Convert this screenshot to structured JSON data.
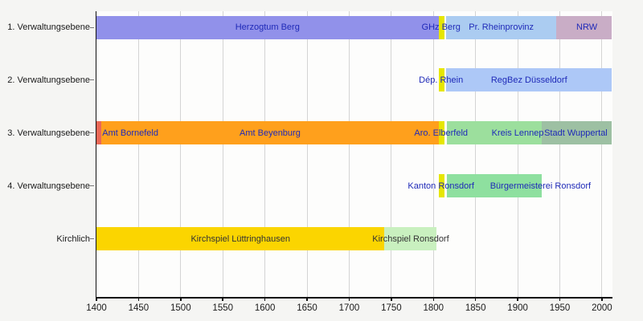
{
  "page": {
    "background": "#f5f5f3",
    "plot_background": "#fdfdfc",
    "grid_color": "#d4d4d4",
    "axis_color": "#111111",
    "label_color": "#1a1a1a"
  },
  "chart_data": {
    "type": "bar",
    "variant": "horizontal-timeline",
    "title": "",
    "xlabel": "",
    "ylabel": "",
    "legend": "none",
    "grid": true,
    "x_axis": {
      "min": 1400,
      "max": 2012,
      "ticks": [
        1400,
        1450,
        1500,
        1550,
        1600,
        1650,
        1700,
        1750,
        1800,
        1850,
        1900,
        1950,
        2000
      ]
    },
    "categories": [
      "1. Verwaltungsebene",
      "2. Verwaltungsebene",
      "3. Verwaltungsebene",
      "4. Verwaltungsebene",
      "Kirchlich"
    ],
    "rows": [
      {
        "label": "1. Verwaltungsebene",
        "segments": [
          {
            "label": "Herzogtum Berg",
            "start": 1400,
            "end": 1806,
            "color": "#9191ea",
            "label_color": "#1f2ab8",
            "label_mode": "center"
          },
          {
            "label": "GHz Berg",
            "start": 1806,
            "end": 1813,
            "color": "#e6e600",
            "label_color": "#1f2ab8",
            "label_mode": "center",
            "label_year": 1809
          },
          {
            "label": "Pr. Rheinprovinz",
            "start": 1815,
            "end": 1946,
            "color": "#abccf1",
            "label_color": "#1f2ab8",
            "label_mode": "center"
          },
          {
            "label": "NRW",
            "start": 1946,
            "end": 2012,
            "color": "#c9adc6",
            "label_color": "#1f2ab8",
            "label_mode": "center",
            "label_year": 1982
          }
        ]
      },
      {
        "label": "2. Verwaltungsebene",
        "segments": [
          {
            "label": "Dép. Rhein",
            "start": 1806,
            "end": 1813,
            "color": "#e6e600",
            "label_color": "#1f2ab8",
            "label_mode": "center",
            "label_year": 1809
          },
          {
            "label": "RegBez Düsseldorf",
            "start": 1815,
            "end": 2012,
            "color": "#adc8f7",
            "label_color": "#1f2ab8",
            "label_mode": "center"
          }
        ]
      },
      {
        "label": "3. Verwaltungsebene",
        "segments": [
          {
            "label": "Amt Bornefeld",
            "start": 1400,
            "end": 1406,
            "color": "#eb6857",
            "label_color": "#1f2ab8",
            "label_mode": "after"
          },
          {
            "label": "Amt Beyenburg",
            "start": 1406,
            "end": 1806,
            "color": "#ffa01c",
            "label_color": "#1f2ab8",
            "label_mode": "center"
          },
          {
            "label": "Aro. Elberfeld",
            "start": 1806,
            "end": 1813,
            "color": "#e6e600",
            "label_color": "#1f2ab8",
            "label_mode": "center",
            "label_year": 1809
          },
          {
            "label": "Kreis Lennep",
            "start": 1816,
            "end": 1929,
            "color": "#9cdf9d",
            "label_color": "#1f2ab8",
            "label_mode": "center",
            "label_year": 1900
          },
          {
            "label": "Stadt Wuppertal",
            "start": 1929,
            "end": 2012,
            "color": "#9dc0a3",
            "label_color": "#1f2ab8",
            "label_mode": "center",
            "label_year": 1969
          }
        ]
      },
      {
        "label": "4. Verwaltungsebene",
        "segments": [
          {
            "label": "Kanton Ronsdorf",
            "start": 1806,
            "end": 1813,
            "color": "#e6e600",
            "label_color": "#1f2ab8",
            "label_mode": "center",
            "label_year": 1809
          },
          {
            "label": "Bürgermeisterei Ronsdorf",
            "start": 1816,
            "end": 1929,
            "color": "#8ee09f",
            "label_color": "#1f2ab8",
            "label_mode": "center",
            "label_year": 1927
          }
        ]
      },
      {
        "label": "Kirchlich",
        "segments": [
          {
            "label": "Kirchspiel Lüttringhausen",
            "start": 1400,
            "end": 1742,
            "color": "#fbd500",
            "label_color": "#333333",
            "label_mode": "center"
          },
          {
            "label": "Kirchspiel Ronsdorf",
            "start": 1742,
            "end": 1804,
            "color": "#c9f0bf",
            "label_color": "#333333",
            "label_mode": "center"
          }
        ]
      }
    ]
  }
}
